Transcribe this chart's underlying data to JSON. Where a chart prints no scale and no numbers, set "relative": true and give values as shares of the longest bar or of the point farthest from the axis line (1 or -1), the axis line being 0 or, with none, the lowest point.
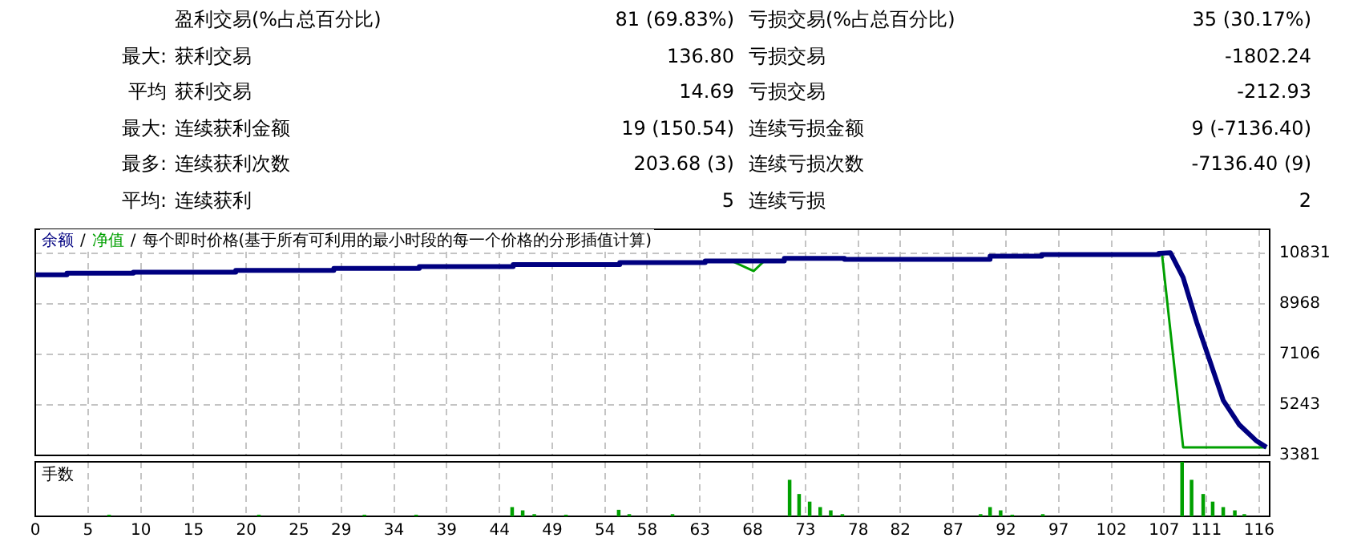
{
  "chart_data": [
    {
      "type": "other",
      "annotations": [
        "盈利交易(%占总百分比)",
        "81 (69.83%)",
        "亏损交易(%占总百分比)",
        "35 (30.17%)",
        "最大: 获利交易",
        "136.80",
        "亏损交易",
        "-1802.24",
        "平均 获利交易",
        "14.69",
        "亏损交易",
        "-212.93",
        "最大: 连续获利金额",
        "19 (150.54)",
        "连续亏损金额",
        "9 (-7136.40)",
        "最多: 连续获利次数",
        "203.68 (3)",
        "连续亏损次数",
        "-7136.40 (9)",
        "平均: 连续获利",
        "5",
        "连续亏损",
        "2"
      ]
    },
    {
      "type": "line",
      "annotations": [
        "/",
        "/"
      ],
      "title": "每个即时价格(基于所有可利用的最小时段的每一个价格的分形插值计算)",
      "legend": "top left",
      "grid": true,
      "tick_labels": "y",
      "xlim": [
        0,
        117
      ],
      "xticks": [
        0,
        5,
        10,
        15,
        20,
        25,
        29,
        34,
        39,
        44,
        49,
        54,
        58,
        63,
        68,
        73,
        78,
        82,
        87,
        92,
        97,
        102,
        107,
        111,
        116
      ],
      "ylim": [
        3381,
        11718
      ],
      "yticks": [
        3381,
        5243,
        7106,
        8968,
        10831
      ],
      "series": [
        {
          "name": "余额",
          "color": "#000080",
          "x": [
            0,
            3,
            3,
            9.3,
            9.3,
            19,
            19,
            28.3,
            28.3,
            36.4,
            36.4,
            45.3,
            45.3,
            55.4,
            55.4,
            63.5,
            63.5,
            71,
            71,
            76.7,
            76.7,
            90.5,
            90.5,
            95.4,
            95.4,
            106.5,
            106.5,
            107.6,
            108.8,
            110.1,
            111.4,
            112.6,
            114.1,
            115.7,
            116.7
          ],
          "values": [
            10040,
            10040,
            10100,
            10100,
            10140,
            10140,
            10200,
            10200,
            10280,
            10280,
            10340,
            10340,
            10420,
            10420,
            10490,
            10490,
            10550,
            10550,
            10650,
            10650,
            10610,
            10610,
            10730,
            10730,
            10790,
            10790,
            10830,
            10850,
            9940,
            8270,
            6790,
            5410,
            4520,
            3930,
            3680
          ]
        },
        {
          "name": "净值",
          "color": "#00a000",
          "x": [
            66,
            68.1,
            69.1,
            88,
            106.8,
            108.8,
            116.7
          ],
          "values": [
            10550,
            10180,
            10550,
            null,
            10790,
            3680,
            3680
          ]
        }
      ]
    },
    {
      "type": "bar",
      "title": "手数",
      "relative": true,
      "color": "#00a000",
      "grid": "x",
      "tick_labels": "x",
      "xlim": [
        0,
        117
      ],
      "xticks": [
        0,
        5,
        10,
        15,
        20,
        25,
        29,
        34,
        39,
        44,
        49,
        54,
        58,
        63,
        68,
        73,
        78,
        82,
        87,
        92,
        97,
        102,
        107,
        111,
        116
      ],
      "x": [
        7,
        21.2,
        31.2,
        36.1,
        45.2,
        46.2,
        47.3,
        50.3,
        55.3,
        56.3,
        60.4,
        71.5,
        72.4,
        73.4,
        74.4,
        75.4,
        76.5,
        89.6,
        90.5,
        91.5,
        92.6,
        95.5,
        108.7,
        109.6,
        110.7,
        111.6,
        112.6,
        113.7,
        114.6
      ],
      "values": [
        0.02,
        0.02,
        0.02,
        0.02,
        0.16,
        0.1,
        0.03,
        0.02,
        0.11,
        0.03,
        0.03,
        0.66,
        0.4,
        0.26,
        0.16,
        0.1,
        0.03,
        0.03,
        0.16,
        0.1,
        0.02,
        0.03,
        1,
        0.66,
        0.4,
        0.26,
        0.16,
        0.1,
        0.03
      ]
    }
  ]
}
